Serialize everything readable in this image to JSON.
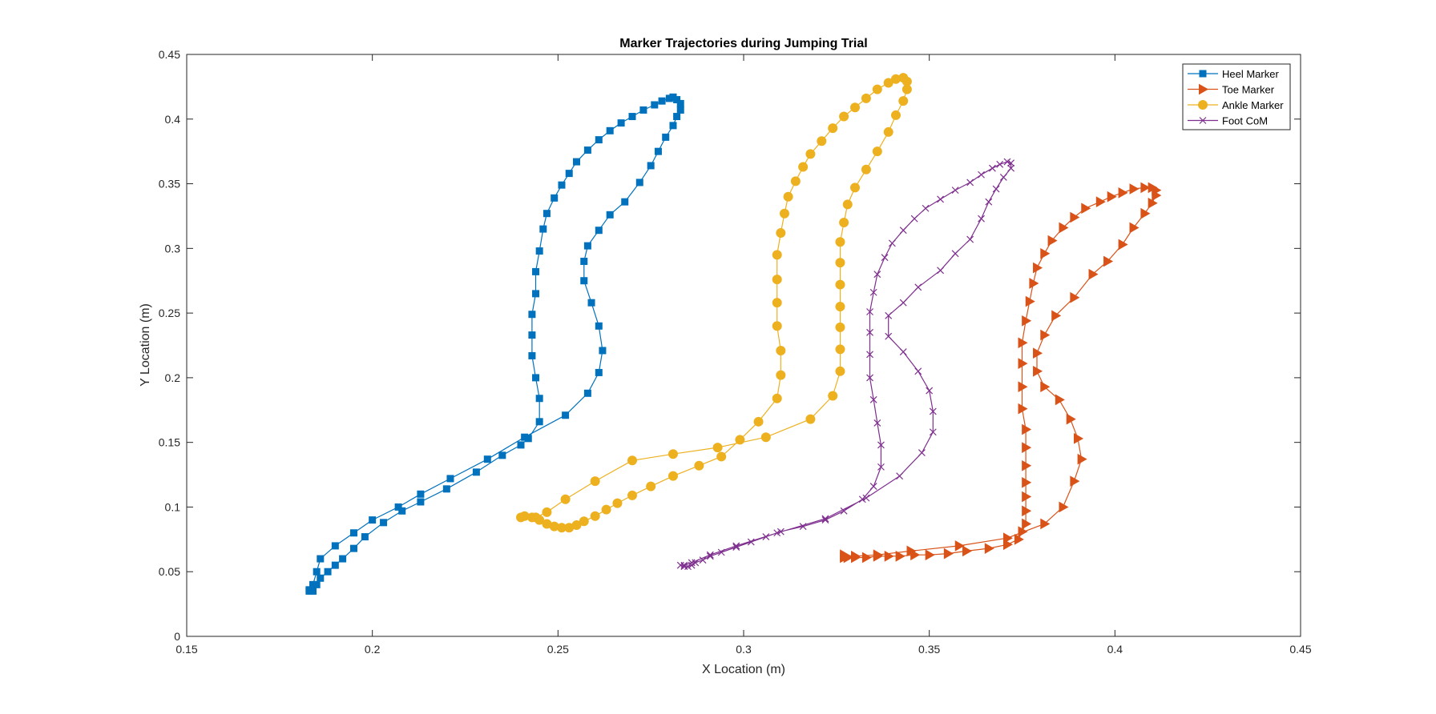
{
  "chart_data": {
    "type": "line",
    "title": "Marker Trajectories during Jumping Trial",
    "xlabel": "X Location (m)",
    "ylabel": "Y Location (m)",
    "xlim": [
      0.15,
      0.45
    ],
    "ylim": [
      0,
      0.45
    ],
    "xticks": [
      "0.15",
      "0.2",
      "0.25",
      "0.3",
      "0.35",
      "0.4",
      "0.45"
    ],
    "yticks": [
      "0",
      "0.05",
      "0.1",
      "0.15",
      "0.2",
      "0.25",
      "0.3",
      "0.35",
      "0.4",
      "0.45"
    ],
    "grid": false,
    "legend_position": "top-right",
    "series": [
      {
        "name": "Heel Marker",
        "color": "#0072BD",
        "marker": "square",
        "points": [
          [
            0.183,
            0.035
          ],
          [
            0.184,
            0.035
          ],
          [
            0.185,
            0.04
          ],
          [
            0.186,
            0.045
          ],
          [
            0.188,
            0.05
          ],
          [
            0.19,
            0.055
          ],
          [
            0.192,
            0.06
          ],
          [
            0.195,
            0.068
          ],
          [
            0.198,
            0.077
          ],
          [
            0.203,
            0.088
          ],
          [
            0.208,
            0.097
          ],
          [
            0.213,
            0.104
          ],
          [
            0.22,
            0.114
          ],
          [
            0.228,
            0.127
          ],
          [
            0.235,
            0.14
          ],
          [
            0.24,
            0.148
          ],
          [
            0.242,
            0.153
          ],
          [
            0.245,
            0.166
          ],
          [
            0.245,
            0.184
          ],
          [
            0.244,
            0.2
          ],
          [
            0.243,
            0.217
          ],
          [
            0.243,
            0.233
          ],
          [
            0.243,
            0.249
          ],
          [
            0.244,
            0.265
          ],
          [
            0.244,
            0.282
          ],
          [
            0.245,
            0.298
          ],
          [
            0.246,
            0.315
          ],
          [
            0.247,
            0.327
          ],
          [
            0.249,
            0.339
          ],
          [
            0.251,
            0.349
          ],
          [
            0.253,
            0.358
          ],
          [
            0.255,
            0.367
          ],
          [
            0.258,
            0.376
          ],
          [
            0.261,
            0.384
          ],
          [
            0.264,
            0.391
          ],
          [
            0.267,
            0.397
          ],
          [
            0.27,
            0.402
          ],
          [
            0.273,
            0.407
          ],
          [
            0.276,
            0.411
          ],
          [
            0.278,
            0.414
          ],
          [
            0.28,
            0.416
          ],
          [
            0.281,
            0.417
          ],
          [
            0.282,
            0.415
          ],
          [
            0.283,
            0.412
          ],
          [
            0.283,
            0.407
          ],
          [
            0.282,
            0.402
          ],
          [
            0.281,
            0.395
          ],
          [
            0.279,
            0.386
          ],
          [
            0.277,
            0.375
          ],
          [
            0.275,
            0.364
          ],
          [
            0.272,
            0.351
          ],
          [
            0.268,
            0.336
          ],
          [
            0.264,
            0.326
          ],
          [
            0.261,
            0.314
          ],
          [
            0.258,
            0.302
          ],
          [
            0.257,
            0.29
          ],
          [
            0.257,
            0.275
          ],
          [
            0.259,
            0.258
          ],
          [
            0.261,
            0.24
          ],
          [
            0.262,
            0.221
          ],
          [
            0.261,
            0.204
          ],
          [
            0.258,
            0.188
          ],
          [
            0.252,
            0.171
          ],
          [
            0.241,
            0.154
          ],
          [
            0.231,
            0.137
          ],
          [
            0.221,
            0.122
          ],
          [
            0.213,
            0.11
          ],
          [
            0.207,
            0.1
          ],
          [
            0.2,
            0.09
          ],
          [
            0.195,
            0.08
          ],
          [
            0.19,
            0.07
          ],
          [
            0.186,
            0.06
          ],
          [
            0.185,
            0.05
          ],
          [
            0.184,
            0.04
          ],
          [
            0.183,
            0.036
          ]
        ]
      },
      {
        "name": "Toe Marker",
        "color": "#D95319",
        "marker": "triangle-right",
        "points": [
          [
            0.327,
            0.061
          ],
          [
            0.328,
            0.061
          ],
          [
            0.33,
            0.061
          ],
          [
            0.333,
            0.061
          ],
          [
            0.336,
            0.062
          ],
          [
            0.339,
            0.062
          ],
          [
            0.342,
            0.062
          ],
          [
            0.346,
            0.063
          ],
          [
            0.35,
            0.063
          ],
          [
            0.355,
            0.064
          ],
          [
            0.36,
            0.066
          ],
          [
            0.366,
            0.068
          ],
          [
            0.371,
            0.071
          ],
          [
            0.374,
            0.075
          ],
          [
            0.375,
            0.081
          ],
          [
            0.376,
            0.087
          ],
          [
            0.376,
            0.097
          ],
          [
            0.376,
            0.108
          ],
          [
            0.376,
            0.119
          ],
          [
            0.376,
            0.132
          ],
          [
            0.376,
            0.146
          ],
          [
            0.376,
            0.16
          ],
          [
            0.375,
            0.176
          ],
          [
            0.375,
            0.193
          ],
          [
            0.375,
            0.211
          ],
          [
            0.375,
            0.227
          ],
          [
            0.376,
            0.244
          ],
          [
            0.377,
            0.259
          ],
          [
            0.378,
            0.273
          ],
          [
            0.379,
            0.285
          ],
          [
            0.381,
            0.296
          ],
          [
            0.383,
            0.306
          ],
          [
            0.386,
            0.316
          ],
          [
            0.389,
            0.324
          ],
          [
            0.392,
            0.331
          ],
          [
            0.396,
            0.336
          ],
          [
            0.399,
            0.34
          ],
          [
            0.402,
            0.343
          ],
          [
            0.405,
            0.346
          ],
          [
            0.408,
            0.347
          ],
          [
            0.41,
            0.347
          ],
          [
            0.411,
            0.345
          ],
          [
            0.411,
            0.341
          ],
          [
            0.41,
            0.335
          ],
          [
            0.408,
            0.327
          ],
          [
            0.405,
            0.316
          ],
          [
            0.402,
            0.303
          ],
          [
            0.398,
            0.29
          ],
          [
            0.394,
            0.28
          ],
          [
            0.389,
            0.262
          ],
          [
            0.384,
            0.248
          ],
          [
            0.381,
            0.233
          ],
          [
            0.379,
            0.219
          ],
          [
            0.379,
            0.205
          ],
          [
            0.381,
            0.193
          ],
          [
            0.385,
            0.183
          ],
          [
            0.388,
            0.168
          ],
          [
            0.39,
            0.153
          ],
          [
            0.391,
            0.137
          ],
          [
            0.389,
            0.12
          ],
          [
            0.386,
            0.1
          ],
          [
            0.381,
            0.087
          ],
          [
            0.371,
            0.076
          ],
          [
            0.358,
            0.07
          ],
          [
            0.345,
            0.066
          ],
          [
            0.336,
            0.063
          ],
          [
            0.33,
            0.062
          ],
          [
            0.327,
            0.063
          ]
        ]
      },
      {
        "name": "Ankle Marker",
        "color": "#EDB120",
        "marker": "circle",
        "points": [
          [
            0.24,
            0.092
          ],
          [
            0.241,
            0.093
          ],
          [
            0.243,
            0.092
          ],
          [
            0.245,
            0.09
          ],
          [
            0.247,
            0.087
          ],
          [
            0.249,
            0.085
          ],
          [
            0.251,
            0.084
          ],
          [
            0.253,
            0.084
          ],
          [
            0.255,
            0.086
          ],
          [
            0.257,
            0.089
          ],
          [
            0.26,
            0.093
          ],
          [
            0.263,
            0.098
          ],
          [
            0.266,
            0.103
          ],
          [
            0.27,
            0.109
          ],
          [
            0.275,
            0.116
          ],
          [
            0.281,
            0.124
          ],
          [
            0.288,
            0.132
          ],
          [
            0.294,
            0.139
          ],
          [
            0.299,
            0.152
          ],
          [
            0.304,
            0.166
          ],
          [
            0.309,
            0.184
          ],
          [
            0.31,
            0.202
          ],
          [
            0.31,
            0.221
          ],
          [
            0.309,
            0.24
          ],
          [
            0.309,
            0.258
          ],
          [
            0.309,
            0.276
          ],
          [
            0.309,
            0.295
          ],
          [
            0.31,
            0.312
          ],
          [
            0.311,
            0.327
          ],
          [
            0.312,
            0.34
          ],
          [
            0.314,
            0.352
          ],
          [
            0.316,
            0.363
          ],
          [
            0.318,
            0.373
          ],
          [
            0.321,
            0.383
          ],
          [
            0.324,
            0.393
          ],
          [
            0.327,
            0.402
          ],
          [
            0.33,
            0.409
          ],
          [
            0.333,
            0.416
          ],
          [
            0.336,
            0.423
          ],
          [
            0.339,
            0.428
          ],
          [
            0.341,
            0.431
          ],
          [
            0.343,
            0.432
          ],
          [
            0.344,
            0.429
          ],
          [
            0.344,
            0.423
          ],
          [
            0.343,
            0.414
          ],
          [
            0.341,
            0.403
          ],
          [
            0.339,
            0.39
          ],
          [
            0.336,
            0.375
          ],
          [
            0.333,
            0.361
          ],
          [
            0.33,
            0.347
          ],
          [
            0.328,
            0.334
          ],
          [
            0.327,
            0.32
          ],
          [
            0.326,
            0.305
          ],
          [
            0.326,
            0.289
          ],
          [
            0.326,
            0.272
          ],
          [
            0.326,
            0.255
          ],
          [
            0.326,
            0.239
          ],
          [
            0.326,
            0.222
          ],
          [
            0.326,
            0.205
          ],
          [
            0.324,
            0.186
          ],
          [
            0.318,
            0.168
          ],
          [
            0.306,
            0.154
          ],
          [
            0.293,
            0.146
          ],
          [
            0.281,
            0.141
          ],
          [
            0.27,
            0.136
          ],
          [
            0.26,
            0.12
          ],
          [
            0.252,
            0.106
          ],
          [
            0.247,
            0.096
          ],
          [
            0.244,
            0.092
          ]
        ]
      },
      {
        "name": "Foot CoM",
        "color": "#7E2F8E",
        "marker": "x",
        "points": [
          [
            0.283,
            0.055
          ],
          [
            0.284,
            0.054
          ],
          [
            0.285,
            0.054
          ],
          [
            0.286,
            0.055
          ],
          [
            0.287,
            0.057
          ],
          [
            0.289,
            0.059
          ],
          [
            0.291,
            0.062
          ],
          [
            0.294,
            0.065
          ],
          [
            0.298,
            0.069
          ],
          [
            0.302,
            0.073
          ],
          [
            0.306,
            0.077
          ],
          [
            0.31,
            0.081
          ],
          [
            0.316,
            0.085
          ],
          [
            0.322,
            0.09
          ],
          [
            0.327,
            0.097
          ],
          [
            0.332,
            0.106
          ],
          [
            0.335,
            0.116
          ],
          [
            0.337,
            0.131
          ],
          [
            0.337,
            0.148
          ],
          [
            0.336,
            0.165
          ],
          [
            0.335,
            0.183
          ],
          [
            0.334,
            0.2
          ],
          [
            0.334,
            0.218
          ],
          [
            0.334,
            0.235
          ],
          [
            0.334,
            0.251
          ],
          [
            0.335,
            0.266
          ],
          [
            0.336,
            0.28
          ],
          [
            0.338,
            0.293
          ],
          [
            0.34,
            0.304
          ],
          [
            0.343,
            0.314
          ],
          [
            0.346,
            0.323
          ],
          [
            0.349,
            0.331
          ],
          [
            0.353,
            0.338
          ],
          [
            0.357,
            0.345
          ],
          [
            0.361,
            0.351
          ],
          [
            0.364,
            0.357
          ],
          [
            0.367,
            0.362
          ],
          [
            0.369,
            0.365
          ],
          [
            0.371,
            0.367
          ],
          [
            0.372,
            0.366
          ],
          [
            0.372,
            0.362
          ],
          [
            0.37,
            0.355
          ],
          [
            0.368,
            0.346
          ],
          [
            0.366,
            0.336
          ],
          [
            0.364,
            0.323
          ],
          [
            0.361,
            0.307
          ],
          [
            0.357,
            0.296
          ],
          [
            0.353,
            0.283
          ],
          [
            0.347,
            0.27
          ],
          [
            0.343,
            0.258
          ],
          [
            0.339,
            0.248
          ],
          [
            0.339,
            0.232
          ],
          [
            0.343,
            0.22
          ],
          [
            0.347,
            0.205
          ],
          [
            0.35,
            0.19
          ],
          [
            0.351,
            0.174
          ],
          [
            0.351,
            0.158
          ],
          [
            0.348,
            0.142
          ],
          [
            0.342,
            0.124
          ],
          [
            0.333,
            0.107
          ],
          [
            0.322,
            0.091
          ],
          [
            0.309,
            0.08
          ],
          [
            0.298,
            0.07
          ],
          [
            0.291,
            0.063
          ],
          [
            0.286,
            0.057
          ],
          [
            0.284,
            0.055
          ]
        ]
      }
    ]
  }
}
